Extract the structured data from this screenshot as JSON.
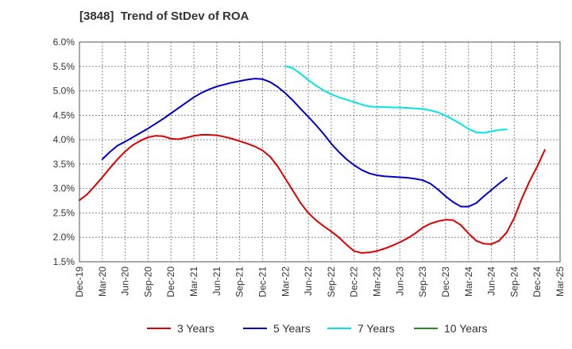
{
  "chart_data": {
    "type": "line",
    "title": "[3848]  Trend of StDev of ROA",
    "xlabel": "",
    "ylabel": "",
    "x_ticks": [
      "Dec-19",
      "Mar-20",
      "Jun-20",
      "Sep-20",
      "Dec-20",
      "Mar-21",
      "Jun-21",
      "Sep-21",
      "Dec-21",
      "Mar-22",
      "Jun-22",
      "Sep-22",
      "Dec-22",
      "Mar-23",
      "Jun-23",
      "Sep-23",
      "Dec-23",
      "Mar-24",
      "Jun-24",
      "Sep-24",
      "Dec-24",
      "Mar-25"
    ],
    "y_ticks": [
      "1.5%",
      "2.0%",
      "2.5%",
      "3.0%",
      "3.5%",
      "4.0%",
      "4.5%",
      "5.0%",
      "5.5%",
      "6.0%"
    ],
    "ylim": [
      1.5,
      6.0
    ],
    "grid": true,
    "legend_position": "bottom",
    "series": [
      {
        "name": "3 Years",
        "color": "#dd0000",
        "start_index": 0,
        "values": [
          2.76,
          2.88,
          3.05,
          3.23,
          3.42,
          3.6,
          3.76,
          3.89,
          3.98,
          4.05,
          4.08,
          4.07,
          4.02,
          4.01,
          4.04,
          4.08,
          4.1,
          4.1,
          4.09,
          4.06,
          4.02,
          3.97,
          3.92,
          3.86,
          3.78,
          3.65,
          3.45,
          3.2,
          2.95,
          2.7,
          2.5,
          2.35,
          2.23,
          2.12,
          2.0,
          1.85,
          1.72,
          1.68,
          1.69,
          1.72,
          1.77,
          1.83,
          1.9,
          1.98,
          2.08,
          2.2,
          2.28,
          2.33,
          2.36,
          2.35,
          2.25,
          2.08,
          1.93,
          1.87,
          1.86,
          1.93,
          2.1,
          2.4,
          2.8,
          3.15,
          3.45,
          3.79
        ]
      },
      {
        "name": "5 Years",
        "color": "#0000cc",
        "start_index": 3,
        "values": [
          3.6,
          3.75,
          3.88,
          3.96,
          4.05,
          4.14,
          4.23,
          4.33,
          4.43,
          4.54,
          4.65,
          4.76,
          4.87,
          4.96,
          5.03,
          5.09,
          5.13,
          5.17,
          5.2,
          5.23,
          5.25,
          5.24,
          5.18,
          5.08,
          4.95,
          4.8,
          4.63,
          4.47,
          4.3,
          4.12,
          3.92,
          3.75,
          3.6,
          3.48,
          3.38,
          3.31,
          3.27,
          3.25,
          3.24,
          3.23,
          3.22,
          3.2,
          3.17,
          3.1,
          2.98,
          2.84,
          2.72,
          2.63,
          2.63,
          2.7,
          2.84,
          2.97,
          3.1,
          3.22
        ]
      },
      {
        "name": "7 Years",
        "color": "#00e5e5",
        "start_index": 27,
        "values": [
          5.51,
          5.46,
          5.35,
          5.22,
          5.11,
          5.01,
          4.93,
          4.87,
          4.82,
          4.77,
          4.72,
          4.68,
          4.67,
          4.67,
          4.66,
          4.66,
          4.65,
          4.64,
          4.63,
          4.6,
          4.56,
          4.49,
          4.41,
          4.32,
          4.22,
          4.15,
          4.14,
          4.17,
          4.2,
          4.21
        ]
      },
      {
        "name": "10 Years",
        "color": "#228b22",
        "start_index": 0,
        "values": []
      }
    ]
  }
}
